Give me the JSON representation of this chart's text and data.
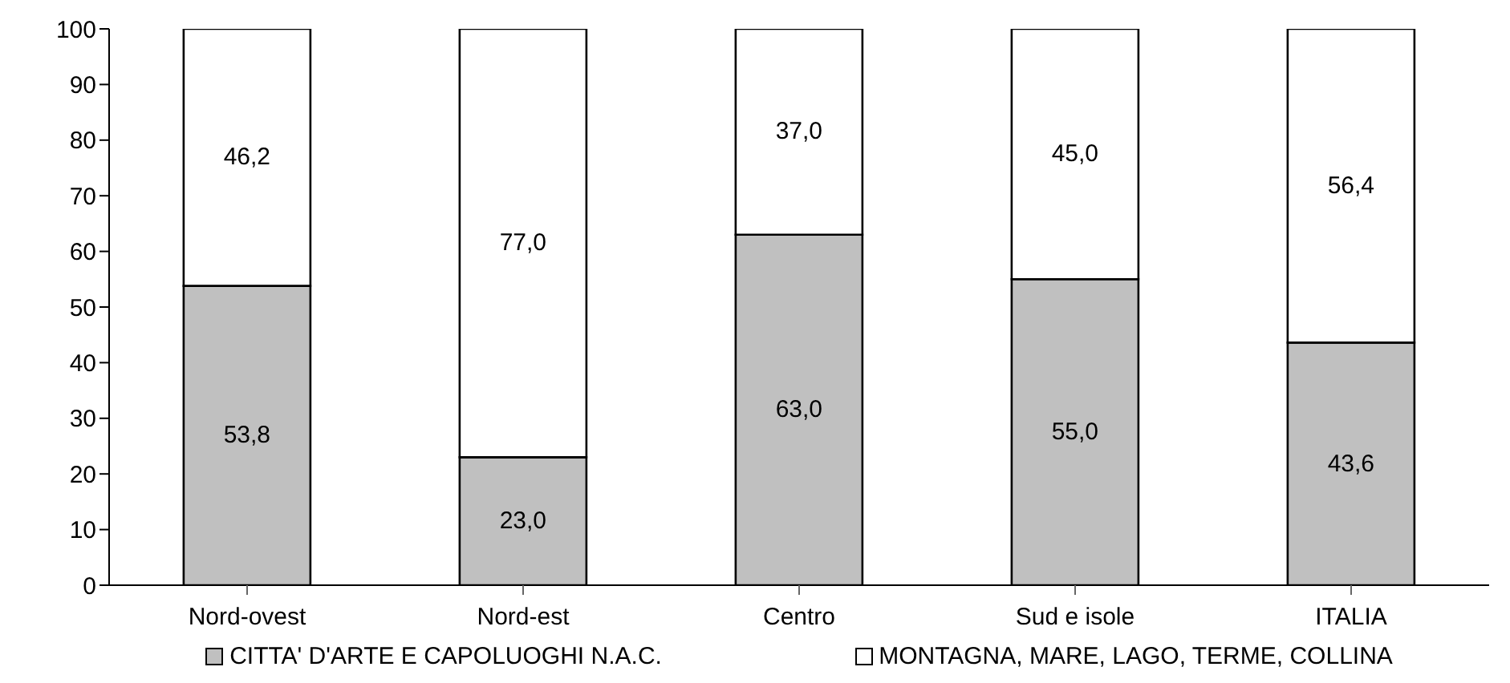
{
  "chart_data": {
    "type": "bar",
    "stacked": true,
    "categories": [
      "Nord-ovest",
      "Nord-est",
      "Centro",
      "Sud e isole",
      "ITALIA"
    ],
    "series": [
      {
        "name": "CITTA' D'ARTE E CAPOLUOGHI N.A.C.",
        "color": "#c0c0c0",
        "values": [
          53.8,
          23.0,
          63.0,
          55.0,
          43.6
        ],
        "value_labels": [
          "53,8",
          "23,0",
          "63,0",
          "55,0",
          "43,6"
        ]
      },
      {
        "name": "MONTAGNA, MARE, LAGO, TERME, COLLINA",
        "color": "#ffffff",
        "values": [
          46.2,
          77.0,
          37.0,
          45.0,
          56.4
        ],
        "value_labels": [
          "46,2",
          "77,0",
          "37,0",
          "45,0",
          "56,4"
        ]
      }
    ],
    "ylim": [
      0,
      100
    ],
    "yticks": [
      0,
      10,
      20,
      30,
      40,
      50,
      60,
      70,
      80,
      90,
      100
    ],
    "legend": "bottom"
  }
}
